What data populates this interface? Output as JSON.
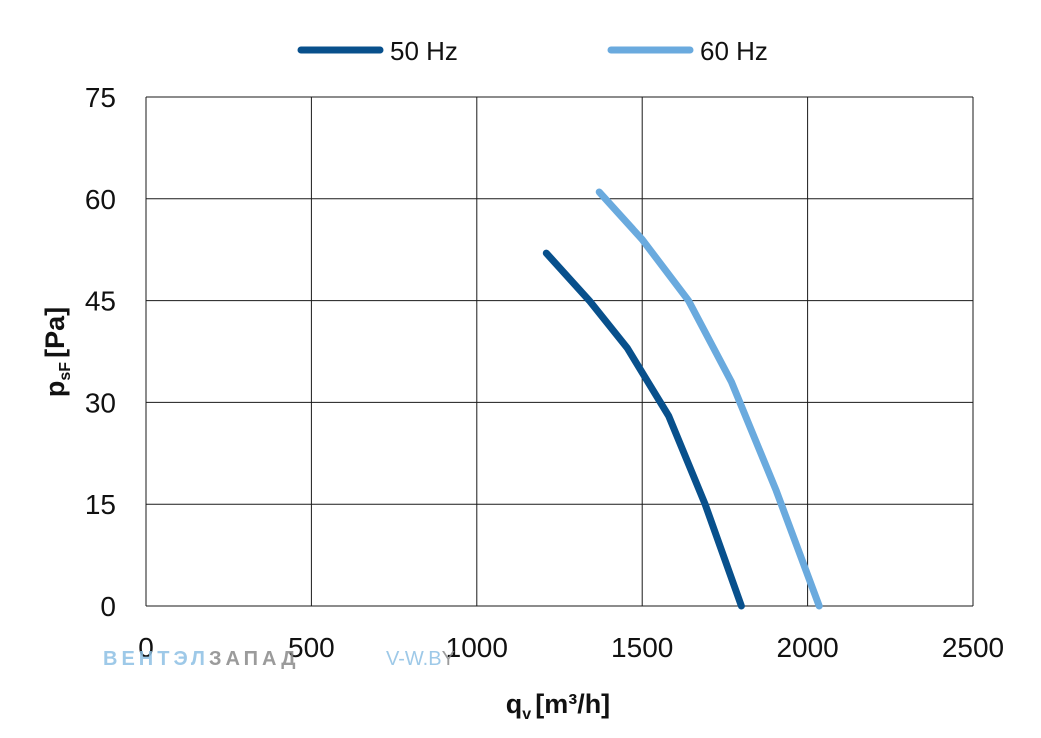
{
  "chart_data": {
    "type": "line",
    "title": "",
    "xlabel": {
      "main": "q",
      "sub": "v",
      "unit": "[m³/h]"
    },
    "ylabel": {
      "main": "p",
      "sub": "sF",
      "unit": "[Pa]"
    },
    "xlim": [
      0,
      2500
    ],
    "ylim": [
      0,
      75
    ],
    "xticks": [
      "0",
      "500",
      "1000",
      "1500",
      "2000",
      "2500"
    ],
    "yticks": [
      "0",
      "15",
      "30",
      "45",
      "60",
      "75"
    ],
    "grid": true,
    "legend": "top",
    "series": [
      {
        "name": "50 Hz",
        "color": "#08508c",
        "points": [
          [
            1210,
            52
          ],
          [
            1340,
            45
          ],
          [
            1455,
            38
          ],
          [
            1580,
            28
          ],
          [
            1690,
            15
          ],
          [
            1800,
            0
          ]
        ]
      },
      {
        "name": "60 Hz",
        "color": "#6aaade",
        "points": [
          [
            1370,
            61
          ],
          [
            1500,
            54
          ],
          [
            1640,
            45
          ],
          [
            1770,
            33
          ],
          [
            1905,
            17
          ],
          [
            2035,
            0
          ]
        ]
      }
    ]
  },
  "watermark": {
    "brand_part1": "ВЕНТЭЛ",
    "brand_part2": "ЗАПАД",
    "url_part1": "V-W.B",
    "url_part2": "Y"
  }
}
